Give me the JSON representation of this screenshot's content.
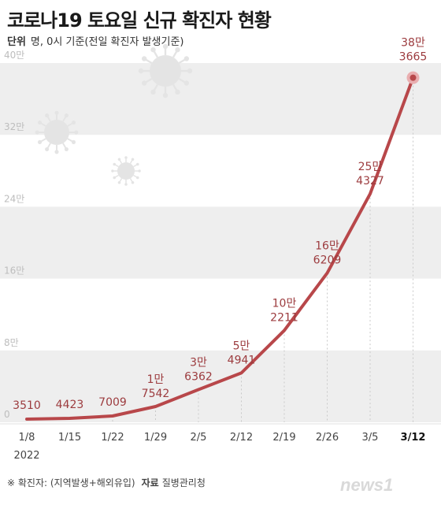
{
  "header": {
    "title": "코로나19 토요일 신규 확진자 현황",
    "unit_key": "단위",
    "unit_text": "명, 0시 기준(전일 확진자 발생기준)"
  },
  "footer": {
    "note": "※ 확진자: (지역발생+해외유입)",
    "source_key": "자료",
    "source_text": "질병관리청"
  },
  "logo": {
    "text": "news1"
  },
  "colors": {
    "line": "#b8474a",
    "label": "#9c3b3e",
    "band": "#eeeeee",
    "axis_text": "#bdbdbd",
    "virus": "#e4e4e4"
  },
  "chart_data": {
    "type": "line",
    "x": [
      "1/8",
      "1/15",
      "1/22",
      "1/29",
      "2/5",
      "2/12",
      "2/19",
      "2/26",
      "3/5",
      "3/12"
    ],
    "x_sublabel": "2022",
    "highlight_index": 9,
    "y": [
      3510,
      4423,
      7009,
      17542,
      36362,
      54941,
      102211,
      166209,
      254327,
      383665
    ],
    "point_labels": [
      [
        "",
        "3510"
      ],
      [
        "",
        "4423"
      ],
      [
        "",
        "7009"
      ],
      [
        "1만",
        "7542"
      ],
      [
        "3만",
        "6362"
      ],
      [
        "5만",
        "4941"
      ],
      [
        "10만",
        "2211"
      ],
      [
        "16만",
        "6209"
      ],
      [
        "25만",
        "4327"
      ],
      [
        "38만",
        "3665"
      ]
    ],
    "y_ticks": [
      0,
      80000,
      160000,
      240000,
      320000,
      400000
    ],
    "y_tick_labels": [
      "0",
      "8만",
      "16만",
      "24만",
      "32만",
      "40만"
    ],
    "ylim": [
      0,
      400000
    ],
    "grid": "alternating bands"
  }
}
